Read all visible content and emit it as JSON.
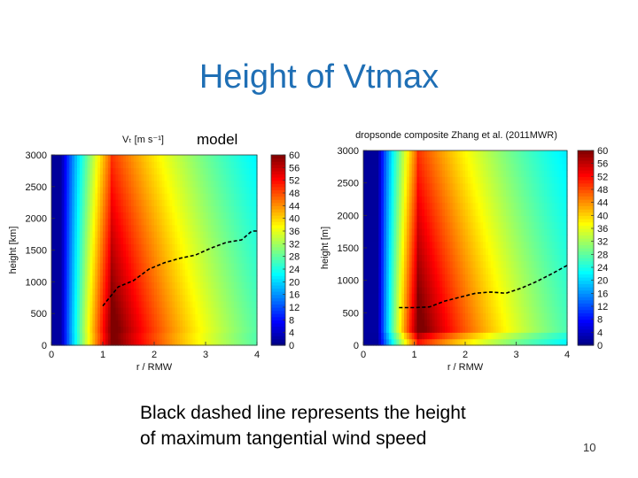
{
  "slide": {
    "title": "Height of Vtmax",
    "model_label": "model",
    "caption_line1": "Black dashed line represents the height",
    "caption_line2": "of maximum tangential wind speed",
    "page_number": "10"
  },
  "colors": {
    "title": "#1f6fb5",
    "dashed_line": "#000000"
  },
  "chart_data": [
    {
      "type": "heatmap",
      "title": "Vₜ [m s⁻¹]",
      "xlabel": "r / RMW",
      "ylabel": "height [km]",
      "xlim": [
        0,
        4
      ],
      "ylim": [
        0,
        3000
      ],
      "x_ticks": [
        "0",
        "1",
        "2",
        "3",
        "4"
      ],
      "y_ticks": [
        "0",
        "500",
        "1000",
        "1500",
        "2000",
        "2500",
        "3000"
      ],
      "colorbar": {
        "min": 0,
        "max": 60,
        "ticks": [
          "0",
          "4",
          "8",
          "12",
          "16",
          "20",
          "24",
          "28",
          "32",
          "36",
          "40",
          "44",
          "48",
          "52",
          "56",
          "60"
        ]
      },
      "field": {
        "peak_r": 1.15,
        "peak_value": 60,
        "inner_edge_r": 0.2,
        "near_surface_boost": true
      },
      "series": [
        {
          "name": "height of maximum tangential wind",
          "x": [
            1.0,
            1.3,
            1.6,
            1.9,
            2.2,
            2.5,
            2.8,
            3.1,
            3.4,
            3.7,
            3.9,
            4.0
          ],
          "y": [
            620,
            920,
            1020,
            1200,
            1300,
            1370,
            1420,
            1530,
            1620,
            1660,
            1800,
            1800
          ]
        }
      ]
    },
    {
      "type": "heatmap",
      "title": "dropsonde composite Zhang et al. (2011MWR)",
      "xlabel": "r / RMW",
      "ylabel": "height [m]",
      "xlim": [
        0,
        4
      ],
      "ylim": [
        0,
        3000
      ],
      "x_ticks": [
        "0",
        "1",
        "2",
        "3",
        "4"
      ],
      "y_ticks": [
        "0",
        "500",
        "1000",
        "1500",
        "2000",
        "2500",
        "3000"
      ],
      "colorbar": {
        "min": 0,
        "max": 60,
        "ticks": [
          "0",
          "4",
          "8",
          "12",
          "16",
          "20",
          "24",
          "28",
          "32",
          "36",
          "40",
          "44",
          "48",
          "52",
          "56",
          "60"
        ]
      },
      "field": {
        "peak_r": 1.05,
        "peak_value": 60,
        "inner_edge_r": 0.3,
        "near_surface_boost": false
      },
      "series": [
        {
          "name": "height of maximum tangential wind",
          "x": [
            0.7,
            1.0,
            1.3,
            1.6,
            1.9,
            2.2,
            2.5,
            2.8,
            3.1,
            3.4,
            3.7,
            4.0
          ],
          "y": [
            580,
            580,
            590,
            680,
            740,
            800,
            820,
            800,
            880,
            980,
            1100,
            1230
          ]
        }
      ]
    }
  ]
}
